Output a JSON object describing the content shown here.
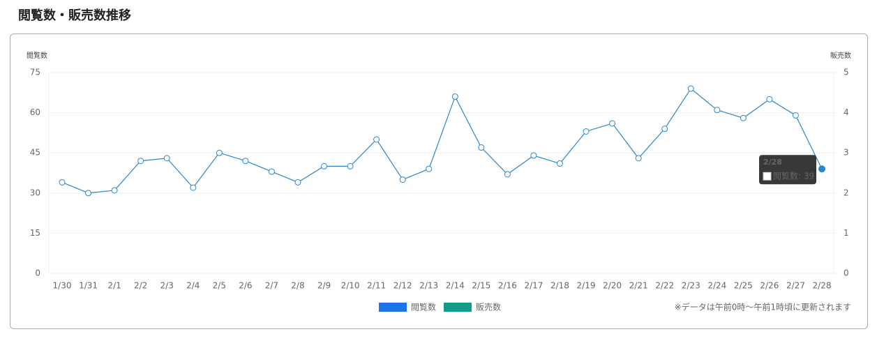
{
  "title": "閲覧数・販売数推移",
  "chart_data": {
    "type": "line",
    "y_label": "閲覧数",
    "y2_label": "販売数",
    "categories": [
      "1/30",
      "1/31",
      "2/1",
      "2/2",
      "2/3",
      "2/4",
      "2/5",
      "2/6",
      "2/7",
      "2/8",
      "2/9",
      "2/10",
      "2/11",
      "2/12",
      "2/13",
      "2/14",
      "2/15",
      "2/16",
      "2/17",
      "2/18",
      "2/19",
      "2/20",
      "2/21",
      "2/22",
      "2/23",
      "2/24",
      "2/25",
      "2/26",
      "2/27",
      "2/28"
    ],
    "series": [
      {
        "name": "閲覧数",
        "color": "#1a73e8",
        "line_color": "#2b87c9",
        "values": [
          34,
          30,
          31,
          42,
          43,
          32,
          45,
          42,
          38,
          34,
          40,
          40,
          50,
          35,
          39,
          66,
          47,
          37,
          44,
          41,
          53,
          56,
          43,
          54,
          69,
          61,
          58,
          65,
          59,
          39
        ]
      },
      {
        "name": "販売数",
        "color": "#0f9d8a",
        "axis": "y2",
        "values": [
          null,
          null,
          null,
          null,
          null,
          null,
          null,
          null,
          null,
          null,
          null,
          null,
          null,
          null,
          null,
          null,
          null,
          null,
          null,
          null,
          null,
          null,
          null,
          null,
          null,
          null,
          null,
          null,
          null,
          null
        ]
      }
    ],
    "ylim": [
      0,
      75
    ],
    "yticks": [
      0,
      15,
      30,
      45,
      60,
      75
    ],
    "y2lim": [
      0,
      5
    ],
    "y2ticks": [
      0,
      1,
      2,
      3,
      4,
      5
    ],
    "grid": true,
    "tooltip": {
      "title": "2/28",
      "text": "閲覧数: 39"
    },
    "note": "※データは午前0時〜午前1時頃に更新されます"
  }
}
